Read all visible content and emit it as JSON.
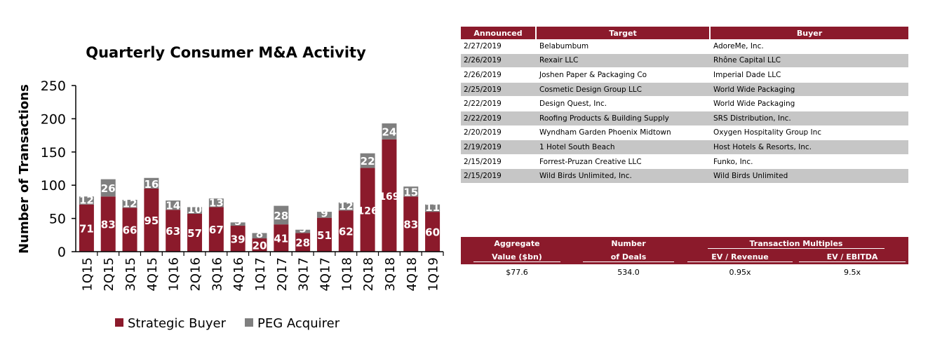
{
  "chart_data": {
    "type": "bar",
    "stacked": true,
    "title": "Quarterly Consumer M&A Activity",
    "xlabel": "",
    "ylabel": "Number of Transactions",
    "ylim": [
      0,
      250
    ],
    "yticks": [
      0,
      50,
      100,
      150,
      200,
      250
    ],
    "grid": false,
    "legend_position": "bottom",
    "categories": [
      "1Q15",
      "2Q15",
      "3Q15",
      "4Q15",
      "1Q16",
      "2Q16",
      "3Q16",
      "4Q16",
      "1Q17",
      "2Q17",
      "3Q17",
      "4Q17",
      "1Q18",
      "2Q18",
      "3Q18",
      "4Q18",
      "1Q19"
    ],
    "series": [
      {
        "name": "Strategic Buyer",
        "color": "#8b1a2b",
        "values": [
          71,
          83,
          66,
          95,
          63,
          57,
          67,
          39,
          20,
          41,
          28,
          51,
          62,
          126,
          169,
          83,
          60
        ]
      },
      {
        "name": "PEG Acquirer",
        "color": "#7f7f7f",
        "values": [
          12,
          26,
          12,
          16,
          14,
          10,
          13,
          5,
          8,
          28,
          5,
          9,
          12,
          22,
          24,
          15,
          11
        ]
      }
    ]
  },
  "deals": {
    "headers": [
      "Announced",
      "Target",
      "Buyer"
    ],
    "rows": [
      [
        "2/27/2019",
        "Belabumbum",
        "AdoreMe, Inc."
      ],
      [
        "2/26/2019",
        "Rexair LLC",
        "Rhône Capital LLC"
      ],
      [
        "2/26/2019",
        "Joshen Paper & Packaging Co",
        "Imperial Dade LLC"
      ],
      [
        "2/25/2019",
        "Cosmetic Design Group LLC",
        "World Wide Packaging"
      ],
      [
        "2/22/2019",
        "Design Quest, Inc.",
        "World Wide Packaging"
      ],
      [
        "2/22/2019",
        "Roofing Products & Building Supply",
        "SRS Distribution, Inc."
      ],
      [
        "2/20/2019",
        "Wyndham Garden Phoenix Midtown",
        "Oxygen Hospitality Group Inc"
      ],
      [
        "2/19/2019",
        "1 Hotel South Beach",
        "Host Hotels & Resorts, Inc."
      ],
      [
        "2/15/2019",
        "Forrest-Pruzan Creative LLC",
        "Funko, Inc."
      ],
      [
        "2/15/2019",
        "Wild Birds Unlimited, Inc.",
        "Wild Birds Unlimited"
      ]
    ]
  },
  "multiples": {
    "agg_label_1": "Aggregate",
    "agg_label_2": "Value ($bn)",
    "num_label_1": "Number",
    "num_label_2": "of Deals",
    "group_label": "Transaction Multiples",
    "ev_rev_label": "EV / Revenue",
    "ev_ebitda_label": "EV / EBITDA",
    "aggregate_value": "$77.6",
    "number_of_deals": "534.0",
    "ev_revenue": "0.95x",
    "ev_ebitda": "9.5x"
  }
}
